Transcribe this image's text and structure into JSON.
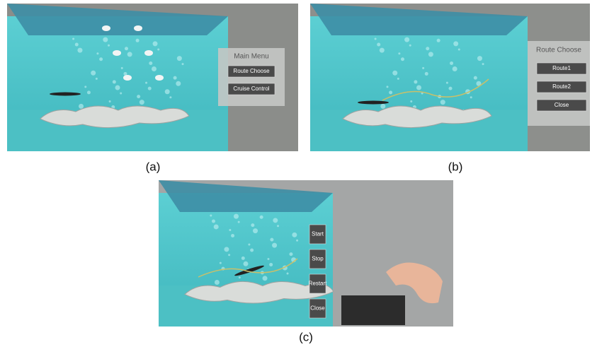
{
  "panels": [
    {
      "caption": "(a)",
      "menu": {
        "title": "Main Menu",
        "buttons": [
          "Route Choose",
          "Cruise Control"
        ]
      }
    },
    {
      "caption": "(b)",
      "menu": {
        "title": "Route Choose",
        "buttons": [
          "Route1",
          "Route2",
          "Close"
        ]
      }
    },
    {
      "caption": "(c)",
      "menu": {
        "buttons": [
          "Start",
          "Stop",
          "Restart",
          "Close"
        ]
      }
    }
  ]
}
